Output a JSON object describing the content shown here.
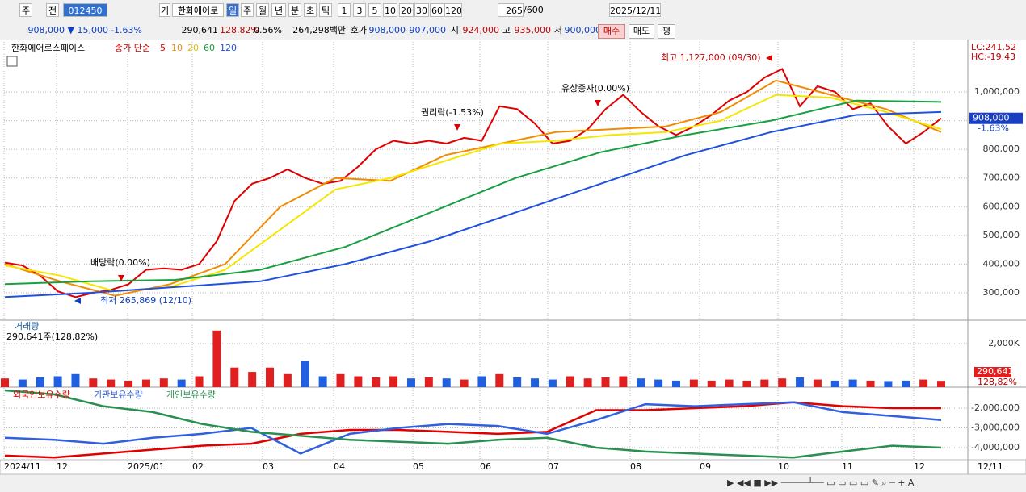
{
  "toolbar": {
    "items": [
      "주",
      "전",
      "012450",
      "거",
      "한화에어로",
      "일",
      "주",
      "월",
      "년",
      "분",
      "초",
      "틱",
      "1",
      "3",
      "5",
      "10",
      "20",
      "30",
      "60",
      "120",
      "265",
      "/600",
      "2025/12/11"
    ]
  },
  "quote_bar": {
    "items": [
      "908,000 ▼",
      "15,000",
      "-1.63%",
      "290,641",
      "128.82%",
      "0.56%",
      "264,298백만",
      "호가",
      "908,000",
      "907,000",
      "시",
      "924,000",
      "고",
      "935,000",
      "저",
      "900,000",
      "매수",
      "매도",
      "평"
    ]
  },
  "x_axis_labels": [
    "2024/11",
    "12",
    "2025/01",
    "02",
    "03",
    "04",
    "05",
    "06",
    "07",
    "08",
    "09",
    "10",
    "11",
    "12",
    "12/11"
  ],
  "chart_data": [
    {
      "type": "line",
      "title": "한화에어로스페이스",
      "subtitle": "종가 단순",
      "ylim": [
        204400,
        1174300
      ],
      "yticks": [
        {
          "value": 300000,
          "label": "300,000"
        },
        {
          "value": 400000,
          "label": "400,000"
        },
        {
          "value": 500000,
          "label": "500,000"
        },
        {
          "value": 600000,
          "label": "600,000"
        },
        {
          "value": 700000,
          "label": "700,000"
        },
        {
          "value": 800000,
          "label": "800,000"
        },
        {
          "value": 900000,
          "label": "900,000"
        },
        {
          "value": 1000000,
          "label": "1,000,000"
        }
      ],
      "grid": true,
      "series": [
        {
          "name": "5",
          "color": "#e00000",
          "values": [
            405000,
            395000,
            360000,
            305000,
            285000,
            300000,
            310000,
            330000,
            380000,
            385000,
            380000,
            400000,
            480000,
            620000,
            680000,
            700000,
            730000,
            700000,
            680000,
            690000,
            740000,
            800000,
            830000,
            820000,
            830000,
            820000,
            840000,
            830000,
            950000,
            940000,
            890000,
            820000,
            830000,
            870000,
            940000,
            990000,
            930000,
            880000,
            850000,
            880000,
            920000,
            970000,
            1000000,
            1050000,
            1080000,
            950000,
            1020000,
            1000000,
            940000,
            960000,
            880000,
            820000,
            860000,
            908000
          ]
        },
        {
          "name": "10",
          "color": "#f08c00",
          "values": [
            400000,
            340000,
            290000,
            330000,
            400000,
            600000,
            700000,
            690000,
            780000,
            820000,
            860000,
            870000,
            880000,
            930000,
            1040000,
            990000,
            940000,
            860000
          ]
        },
        {
          "name": "20",
          "color": "#f5e600",
          "values": [
            395000,
            360000,
            305000,
            320000,
            380000,
            520000,
            660000,
            700000,
            760000,
            820000,
            830000,
            850000,
            860000,
            900000,
            990000,
            980000,
            930000,
            870000
          ]
        },
        {
          "name": "60",
          "color": "#18a040",
          "values": [
            330000,
            340000,
            345000,
            380000,
            460000,
            580000,
            700000,
            790000,
            850000,
            900000,
            970000,
            965000
          ]
        },
        {
          "name": "120",
          "color": "#2050e0",
          "values": [
            285000,
            300000,
            320000,
            340000,
            400000,
            480000,
            580000,
            680000,
            780000,
            860000,
            920000,
            930000
          ]
        }
      ],
      "annotations": [
        "최고 1,127,000 (09/30)",
        "최저 265,869 (12/10)",
        "배당락(0.00%)",
        "권리락(-1.53%)",
        "유상증자(0.00%)"
      ],
      "scale_labels": [
        "LC:241.52",
        "HC:-19.43"
      ],
      "last_labels": [
        "908,000",
        "-1.63%"
      ]
    },
    {
      "type": "bar",
      "title": "거래량",
      "subtitle": "290,641주(128.82%)",
      "ylim": [
        0,
        3037
      ],
      "yticks": [
        {
          "value": 2000,
          "label": "2,000K"
        }
      ],
      "up_color": "#e02020",
      "down_color": "#2060e0",
      "values": [
        400,
        350,
        450,
        500,
        600,
        400,
        350,
        300,
        350,
        400,
        350,
        500,
        2600,
        900,
        700,
        900,
        600,
        1200,
        500,
        600,
        500,
        450,
        500,
        400,
        450,
        400,
        350,
        500,
        600,
        450,
        400,
        350,
        500,
        400,
        450,
        500,
        400,
        350,
        300,
        350,
        300,
        350,
        300,
        350,
        400,
        450,
        350,
        300,
        350,
        300,
        280,
        300,
        350,
        290.641
      ],
      "last_labels": [
        "290,641",
        "128,82%"
      ]
    },
    {
      "type": "line",
      "ylim": [
        -4610000,
        -1020000
      ],
      "yticks": [
        {
          "value": -2000000,
          "label": "-2,000,000"
        },
        {
          "value": -3000000,
          "label": "-3,000,000"
        },
        {
          "value": -4000000,
          "label": "-4,000,000"
        }
      ],
      "series": [
        {
          "name": "외국인보유수량",
          "color": "#e00000",
          "values": [
            -4400000,
            -4500000,
            -4300000,
            -4100000,
            -3900000,
            -3800000,
            -3300000,
            -3100000,
            -3100000,
            -3200000,
            -3300000,
            -3200000,
            -2100000,
            -2100000,
            -2000000,
            -1900000,
            -1700000,
            -1900000,
            -2000000,
            -2000000
          ]
        },
        {
          "name": "기관보유수량",
          "color": "#3060e0",
          "values": [
            -3500000,
            -3600000,
            -3800000,
            -3500000,
            -3300000,
            -3000000,
            -4300000,
            -3300000,
            -3000000,
            -2800000,
            -2900000,
            -3300000,
            -2600000,
            -1800000,
            -1900000,
            -1800000,
            -1700000,
            -2200000,
            -2400000,
            -2600000
          ]
        },
        {
          "name": "개인보유수량",
          "color": "#2a9050",
          "values": [
            -1100000,
            -1300000,
            -1900000,
            -2200000,
            -2800000,
            -3200000,
            -3400000,
            -3600000,
            -3700000,
            -3800000,
            -3600000,
            -3500000,
            -4000000,
            -4200000,
            -4300000,
            -4400000,
            -4500000,
            -4200000,
            -3900000,
            -4000000
          ]
        }
      ]
    }
  ]
}
